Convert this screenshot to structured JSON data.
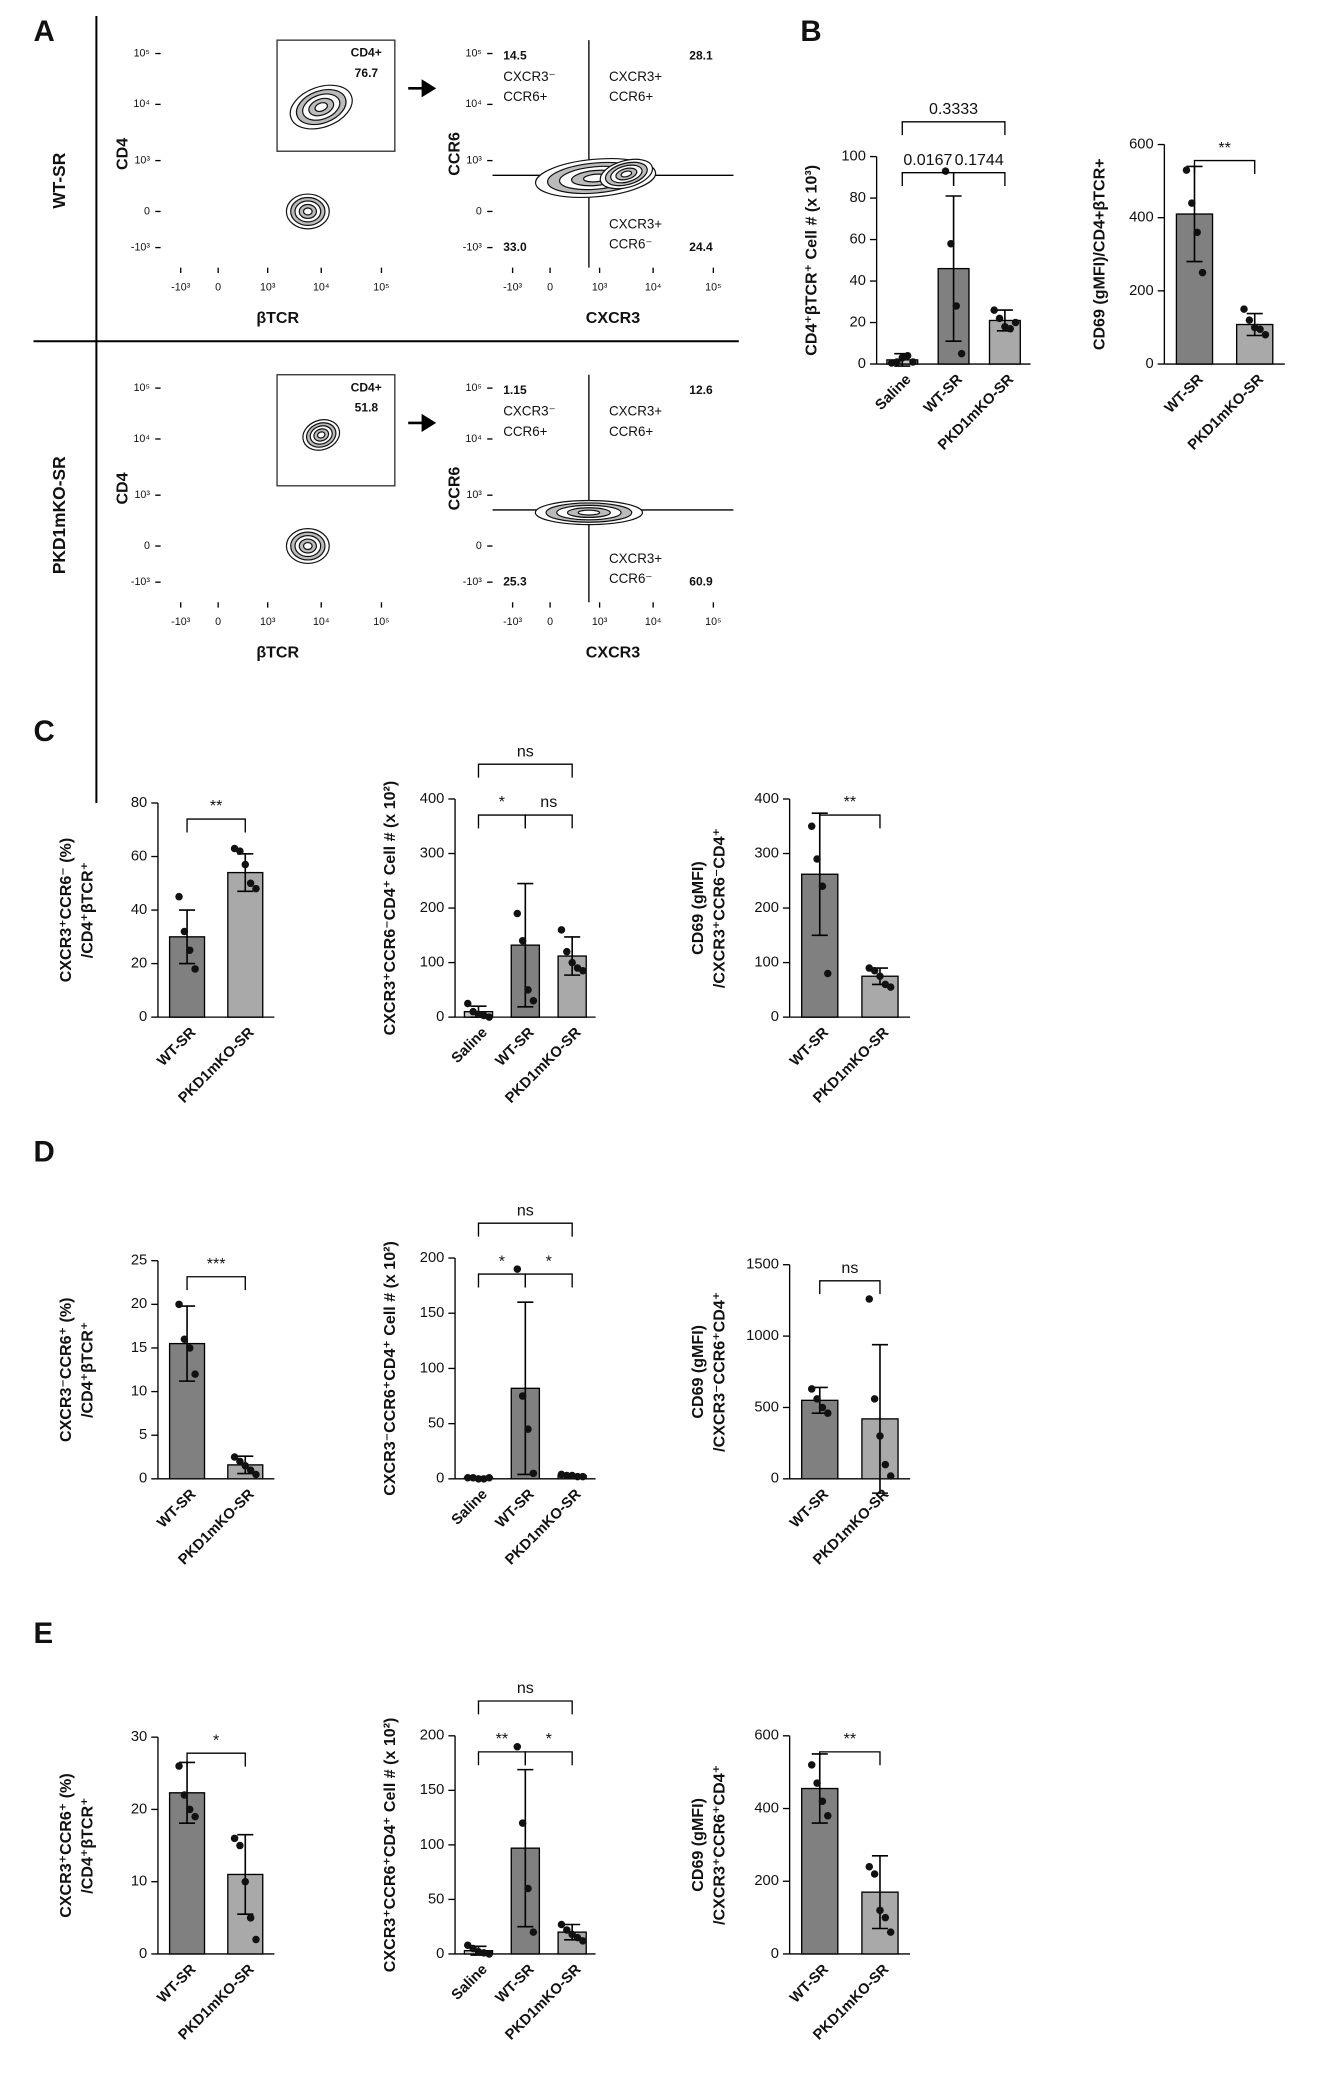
{
  "panels": [
    "A",
    "B",
    "C",
    "D",
    "E"
  ],
  "flow": {
    "rows": [
      {
        "label": "WT-SR",
        "gate_label": "CD4+",
        "gate_value": "76.7",
        "q_values": [
          "14.5",
          "28.1",
          "24.4",
          "33.0"
        ],
        "q_labels": [
          [
            "CXCR3⁻",
            "CCR6+"
          ],
          [
            "CXCR3+",
            "CCR6+"
          ],
          [
            "CXCR3+",
            "CCR6⁻"
          ]
        ]
      },
      {
        "label": "PKD1mKO-SR",
        "gate_label": "CD4+",
        "gate_value": "51.8",
        "q_values": [
          "1.15",
          "12.6",
          "60.9",
          "25.3"
        ],
        "q_labels": [
          [
            "CXCR3⁻",
            "CCR6+"
          ],
          [
            "CXCR3+",
            "CCR6+"
          ],
          [
            "CXCR3+",
            "CCR6⁻"
          ]
        ]
      }
    ],
    "axis_labels": [
      "CD4",
      "βTCR",
      "CCR6",
      "CXCR3"
    ],
    "yticks": [
      "10⁵",
      "10⁴",
      "10³",
      "0",
      "-10³"
    ],
    "xticks": [
      "-10³",
      "0",
      "10³",
      "10⁴",
      "10⁵"
    ]
  },
  "chart_data": [
    {
      "type": "bar",
      "ylabel": "CD4⁺βTCR⁺ Cell # (x 10³)",
      "categories": [
        "Saline",
        "WT-SR",
        "PKD1mKO-SR"
      ],
      "colors": [
        "#c8c8c8",
        "#808080",
        "#a9a9a9"
      ],
      "values": [
        2,
        46,
        21
      ],
      "errors": [
        3,
        35,
        5
      ],
      "points": [
        [
          0.5,
          1,
          3,
          4,
          1
        ],
        [
          93,
          58,
          28,
          5
        ],
        [
          26,
          22,
          18,
          17,
          20
        ]
      ],
      "ylim": [
        0,
        100
      ],
      "yticks": [
        0,
        20,
        40,
        60,
        80,
        100
      ],
      "brackets": [
        {
          "from": 0,
          "to": 1,
          "label": "0.0167"
        },
        {
          "from": 1,
          "to": 2,
          "label": "0.1744"
        },
        {
          "from": 0,
          "to": 2,
          "label": "0.3333"
        }
      ]
    },
    {
      "type": "bar",
      "ylabel": "CD69 (gMFI)/CD4+βTCR+",
      "categories": [
        "WT-SR",
        "PKD1mKO-SR"
      ],
      "colors": [
        "#808080",
        "#a9a9a9"
      ],
      "values": [
        410,
        108
      ],
      "errors": [
        130,
        30
      ],
      "points": [
        [
          530,
          440,
          360,
          250
        ],
        [
          150,
          120,
          100,
          95,
          80
        ]
      ],
      "ylim": [
        0,
        600
      ],
      "yticks": [
        0,
        200,
        400,
        600
      ],
      "brackets": [
        {
          "from": 0,
          "to": 1,
          "label": "**"
        }
      ]
    },
    {
      "type": "bar",
      "ylabel": [
        "CXCR3⁺CCR6⁻ (%)",
        "/CD4⁺βTCR⁺"
      ],
      "categories": [
        "WT-SR",
        "PKD1mKO-SR"
      ],
      "colors": [
        "#808080",
        "#a9a9a9"
      ],
      "values": [
        30,
        54
      ],
      "errors": [
        10,
        7
      ],
      "points": [
        [
          45,
          32,
          25,
          18
        ],
        [
          63,
          62,
          57,
          50,
          48
        ]
      ],
      "ylim": [
        0,
        80
      ],
      "yticks": [
        0,
        20,
        40,
        60,
        80
      ],
      "brackets": [
        {
          "from": 0,
          "to": 1,
          "label": "**"
        }
      ]
    },
    {
      "type": "bar",
      "ylabel": "CXCR3⁺CCR6⁻CD4⁺ Cell # (x 10²)",
      "categories": [
        "Saline",
        "WT-SR",
        "PKD1mKO-SR"
      ],
      "colors": [
        "#c8c8c8",
        "#808080",
        "#a9a9a9"
      ],
      "values": [
        10,
        132,
        112
      ],
      "errors": [
        10,
        113,
        35
      ],
      "points": [
        [
          25,
          10,
          5,
          3,
          0
        ],
        [
          190,
          140,
          50,
          30
        ],
        [
          160,
          120,
          100,
          90,
          85
        ]
      ],
      "ylim": [
        0,
        400
      ],
      "yticks": [
        0,
        100,
        200,
        300,
        400
      ],
      "brackets": [
        {
          "from": 0,
          "to": 1,
          "label": "*"
        },
        {
          "from": 1,
          "to": 2,
          "label": "ns"
        },
        {
          "from": 0,
          "to": 2,
          "label": "ns"
        }
      ]
    },
    {
      "type": "bar",
      "ylabel": [
        "CD69 (gMFI)",
        "/CXCR3⁺CCR6⁻CD4⁺"
      ],
      "categories": [
        "WT-SR",
        "PKD1mKO-SR"
      ],
      "colors": [
        "#808080",
        "#a9a9a9"
      ],
      "values": [
        262,
        75
      ],
      "errors": [
        112,
        15
      ],
      "points": [
        [
          350,
          290,
          240,
          80
        ],
        [
          90,
          85,
          75,
          60,
          55
        ]
      ],
      "ylim": [
        0,
        400
      ],
      "yticks": [
        0,
        100,
        200,
        300,
        400
      ],
      "brackets": [
        {
          "from": 0,
          "to": 1,
          "label": "**"
        }
      ]
    },
    {
      "type": "bar",
      "ylabel": [
        "CXCR3⁻CCR6⁺ (%)",
        "/CD4⁺βTCR⁺"
      ],
      "categories": [
        "WT-SR",
        "PKD1mKO-SR"
      ],
      "colors": [
        "#808080",
        "#a9a9a9"
      ],
      "values": [
        15.5,
        1.6
      ],
      "errors": [
        4.3,
        1
      ],
      "points": [
        [
          20,
          16,
          15,
          12
        ],
        [
          2.5,
          2,
          1.5,
          1,
          0.5
        ]
      ],
      "ylim": [
        0,
        25
      ],
      "yticks": [
        0,
        5,
        10,
        15,
        20,
        25
      ],
      "brackets": [
        {
          "from": 0,
          "to": 1,
          "label": "***"
        }
      ]
    },
    {
      "type": "bar",
      "ylabel": "CXCR3⁻CCR6⁺CD4⁺ Cell # (x 10²)",
      "categories": [
        "Saline",
        "WT-SR",
        "PKD1mKO-SR"
      ],
      "colors": [
        "#c8c8c8",
        "#808080",
        "#a9a9a9"
      ],
      "values": [
        1,
        82,
        3
      ],
      "errors": [
        1,
        78,
        1
      ],
      "points": [
        [
          1,
          1,
          0,
          0,
          1
        ],
        [
          190,
          75,
          45,
          5
        ],
        [
          4,
          3,
          3,
          2,
          2
        ]
      ],
      "ylim": [
        0,
        200
      ],
      "yticks": [
        0,
        50,
        100,
        150,
        200
      ],
      "brackets": [
        {
          "from": 0,
          "to": 1,
          "label": "*"
        },
        {
          "from": 1,
          "to": 2,
          "label": "*"
        },
        {
          "from": 0,
          "to": 2,
          "label": "ns"
        }
      ]
    },
    {
      "type": "bar",
      "ylabel": [
        "CD69 (gMFI)",
        "/CXCR3⁻CCR6⁺CD4⁺"
      ],
      "categories": [
        "WT-SR",
        "PKD1mKO-SR"
      ],
      "colors": [
        "#808080",
        "#a9a9a9"
      ],
      "values": [
        550,
        420
      ],
      "errors": [
        90,
        520
      ],
      "points": [
        [
          630,
          560,
          500,
          460
        ],
        [
          1260,
          560,
          300,
          100,
          20
        ]
      ],
      "ylim": [
        0,
        1500
      ],
      "yticks": [
        0,
        500,
        1000,
        1500
      ],
      "brackets": [
        {
          "from": 0,
          "to": 1,
          "label": "ns"
        }
      ]
    },
    {
      "type": "bar",
      "ylabel": [
        "CXCR3⁺CCR6⁺ (%)",
        "/CD4⁺βTCR⁺"
      ],
      "categories": [
        "WT-SR",
        "PKD1mKO-SR"
      ],
      "colors": [
        "#808080",
        "#a9a9a9"
      ],
      "values": [
        22.3,
        11
      ],
      "errors": [
        4.2,
        5.5
      ],
      "points": [
        [
          26,
          22,
          20,
          19
        ],
        [
          16,
          15,
          10,
          5,
          2
        ]
      ],
      "ylim": [
        0,
        30
      ],
      "yticks": [
        0,
        10,
        20,
        30
      ],
      "brackets": [
        {
          "from": 0,
          "to": 1,
          "label": "*"
        }
      ]
    },
    {
      "type": "bar",
      "ylabel": "CXCR3⁺CCR6⁺CD4⁺ Cell # (x 10²)",
      "categories": [
        "Saline",
        "WT-SR",
        "PKD1mKO-SR"
      ],
      "colors": [
        "#c8c8c8",
        "#808080",
        "#a9a9a9"
      ],
      "values": [
        3,
        97,
        20
      ],
      "errors": [
        4,
        72,
        7
      ],
      "points": [
        [
          8,
          5,
          2,
          1,
          0
        ],
        [
          190,
          120,
          60,
          20
        ],
        [
          27,
          22,
          18,
          15,
          12
        ]
      ],
      "ylim": [
        0,
        200
      ],
      "yticks": [
        0,
        50,
        100,
        150,
        200
      ],
      "brackets": [
        {
          "from": 0,
          "to": 1,
          "label": "**"
        },
        {
          "from": 1,
          "to": 2,
          "label": "*"
        },
        {
          "from": 0,
          "to": 2,
          "label": "ns"
        }
      ]
    },
    {
      "type": "bar",
      "ylabel": [
        "CD69 (gMFI)",
        "/CXCR3⁺CCR6⁺CD4⁺"
      ],
      "categories": [
        "WT-SR",
        "PKD1mKO-SR"
      ],
      "colors": [
        "#808080",
        "#a9a9a9"
      ],
      "values": [
        455,
        170
      ],
      "errors": [
        95,
        100
      ],
      "points": [
        [
          520,
          470,
          420,
          380
        ],
        [
          240,
          220,
          120,
          100,
          60
        ]
      ],
      "ylim": [
        0,
        600
      ],
      "yticks": [
        0,
        200,
        400,
        600
      ],
      "brackets": [
        {
          "from": 0,
          "to": 1,
          "label": "**"
        }
      ]
    }
  ]
}
